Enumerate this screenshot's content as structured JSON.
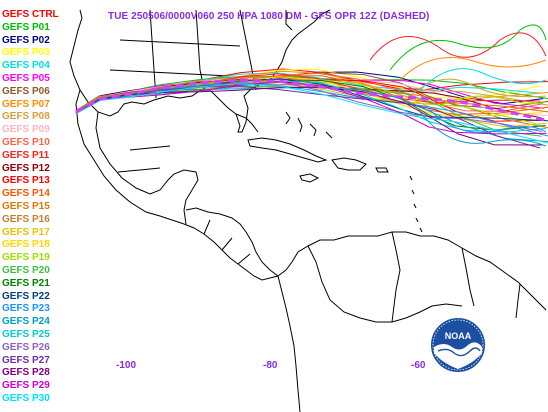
{
  "header": {
    "title": "TUE 250506/0000V060  250 HPA 1080 DM - GFS OPR 12Z (DASHED)",
    "color": "#8a2be2"
  },
  "legend": [
    {
      "label": "GEFS CTRL",
      "color": "#ff0000"
    },
    {
      "label": "GEFS P01",
      "color": "#00c000"
    },
    {
      "label": "GEFS P02",
      "color": "#000080"
    },
    {
      "label": "GEFS P03",
      "color": "#ffff00"
    },
    {
      "label": "GEFS P04",
      "color": "#00e0e0"
    },
    {
      "label": "GEFS P05",
      "color": "#ff00ff"
    },
    {
      "label": "GEFS P06",
      "color": "#8b5a2b"
    },
    {
      "label": "GEFS P07",
      "color": "#ff8c00"
    },
    {
      "label": "GEFS P08",
      "color": "#d2a040"
    },
    {
      "label": "GEFS P09",
      "color": "#ffb6c1"
    },
    {
      "label": "GEFS P10",
      "color": "#ff6347"
    },
    {
      "label": "GEFS P11",
      "color": "#ff2020"
    },
    {
      "label": "GEFS P12",
      "color": "#8b0000"
    },
    {
      "label": "GEFS P13",
      "color": "#ff0000"
    },
    {
      "label": "GEFS P14",
      "color": "#ff5500"
    },
    {
      "label": "GEFS P15",
      "color": "#e07800"
    },
    {
      "label": "GEFS P16",
      "color": "#c08030"
    },
    {
      "label": "GEFS P17",
      "color": "#e6c200"
    },
    {
      "label": "GEFS P18",
      "color": "#ffd700"
    },
    {
      "label": "GEFS P19",
      "color": "#a0e000"
    },
    {
      "label": "GEFS P20",
      "color": "#40c040"
    },
    {
      "label": "GEFS P21",
      "color": "#008000"
    },
    {
      "label": "GEFS P22",
      "color": "#004080"
    },
    {
      "label": "GEFS P23",
      "color": "#1e90ff"
    },
    {
      "label": "GEFS P24",
      "color": "#00a0c0"
    },
    {
      "label": "GEFS P25",
      "color": "#00d0d0"
    },
    {
      "label": "GEFS P26",
      "color": "#9060c0"
    },
    {
      "label": "GEFS P27",
      "color": "#7030a0"
    },
    {
      "label": "GEFS P28",
      "color": "#800080"
    },
    {
      "label": "GEFS P29",
      "color": "#d000d0"
    },
    {
      "label": "GEFS P30",
      "color": "#00e0ff"
    }
  ],
  "axis": {
    "longitude_labels": [
      "-100",
      "-80",
      "-60"
    ]
  },
  "logo": {
    "text": "NOAA"
  }
}
